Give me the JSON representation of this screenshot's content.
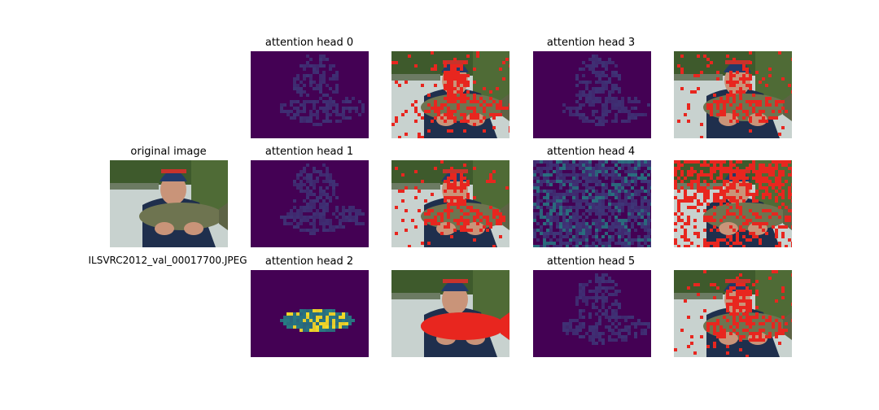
{
  "original": {
    "title": "original image",
    "filename": "ILSVRC2012_val_00017700.JPEG"
  },
  "heads": [
    {
      "title": "attention head 0"
    },
    {
      "title": "attention head 1"
    },
    {
      "title": "attention head 2"
    },
    {
      "title": "attention head 3"
    },
    {
      "title": "attention head 4"
    },
    {
      "title": "attention head 5"
    }
  ],
  "colors": {
    "heatmap_background": "#440154",
    "heatmap_mid": "#3b528b",
    "heatmap_high": "#21918c",
    "heatmap_peak": "#fde725",
    "overlay_red": "#e8261f",
    "sky": "#c8d2cf",
    "trees": "#3e5a2c",
    "hat": "#223a6a",
    "jacket": "#1f2f4d",
    "skin": "#c99479",
    "fish": "#6e7450"
  }
}
